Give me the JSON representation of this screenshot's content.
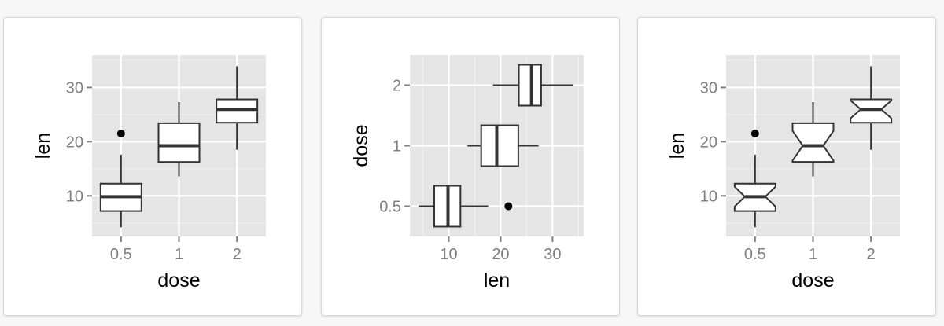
{
  "chart_data": [
    {
      "type": "boxplot",
      "orientation": "vertical",
      "notch": false,
      "xlabel": "dose",
      "ylabel": "len",
      "categories": [
        "0.5",
        "1",
        "2"
      ],
      "y_ticks": [
        10,
        20,
        30
      ],
      "ylim": [
        2.5,
        36
      ],
      "grid": true,
      "boxes": [
        {
          "category": "0.5",
          "whisker_low": 4.2,
          "q1": 7.2,
          "median": 9.85,
          "q3": 12.25,
          "whisker_high": 17.6,
          "outliers": [
            21.5
          ]
        },
        {
          "category": "1",
          "whisker_low": 13.6,
          "q1": 16.25,
          "median": 19.25,
          "q3": 23.4,
          "whisker_high": 27.3,
          "outliers": []
        },
        {
          "category": "2",
          "whisker_low": 18.5,
          "q1": 23.5,
          "median": 25.95,
          "q3": 27.8,
          "whisker_high": 33.9,
          "outliers": []
        }
      ]
    },
    {
      "type": "boxplot",
      "orientation": "horizontal",
      "notch": false,
      "xlabel": "len",
      "ylabel": "dose",
      "categories": [
        "0.5",
        "1",
        "2"
      ],
      "x_ticks": [
        10,
        20,
        30
      ],
      "xlim": [
        2.5,
        36
      ],
      "grid": true,
      "boxes": [
        {
          "category": "0.5",
          "whisker_low": 4.2,
          "q1": 7.2,
          "median": 9.85,
          "q3": 12.25,
          "whisker_high": 17.6,
          "outliers": [
            21.5
          ]
        },
        {
          "category": "1",
          "whisker_low": 13.6,
          "q1": 16.25,
          "median": 19.25,
          "q3": 23.4,
          "whisker_high": 27.3,
          "outliers": []
        },
        {
          "category": "2",
          "whisker_low": 18.5,
          "q1": 23.5,
          "median": 25.95,
          "q3": 27.8,
          "whisker_high": 33.9,
          "outliers": []
        }
      ]
    },
    {
      "type": "boxplot",
      "orientation": "vertical",
      "notch": true,
      "xlabel": "dose",
      "ylabel": "len",
      "categories": [
        "0.5",
        "1",
        "2"
      ],
      "y_ticks": [
        10,
        20,
        30
      ],
      "ylim": [
        2.5,
        36
      ],
      "grid": true,
      "boxes": [
        {
          "category": "0.5",
          "whisker_low": 4.2,
          "q1": 7.2,
          "median": 9.85,
          "q3": 12.25,
          "whisker_high": 17.6,
          "notch_low": 8.0,
          "notch_high": 11.7,
          "outliers": [
            21.5
          ]
        },
        {
          "category": "1",
          "whisker_low": 13.6,
          "q1": 16.25,
          "median": 19.25,
          "q3": 23.4,
          "whisker_high": 27.3,
          "notch_low": 16.5,
          "notch_high": 22.0,
          "outliers": []
        },
        {
          "category": "2",
          "whisker_low": 18.5,
          "q1": 23.5,
          "median": 25.95,
          "q3": 27.8,
          "whisker_high": 33.9,
          "notch_low": 24.3,
          "notch_high": 27.6,
          "outliers": []
        }
      ]
    }
  ],
  "colors": {
    "panel_background": "#e5e5e5",
    "grid_major": "#ffffff",
    "box_fill": "#ffffff",
    "box_stroke": "#333333",
    "tick_label": "#7f7f7f",
    "axis_title": "#000000",
    "outlier": "#000000"
  }
}
